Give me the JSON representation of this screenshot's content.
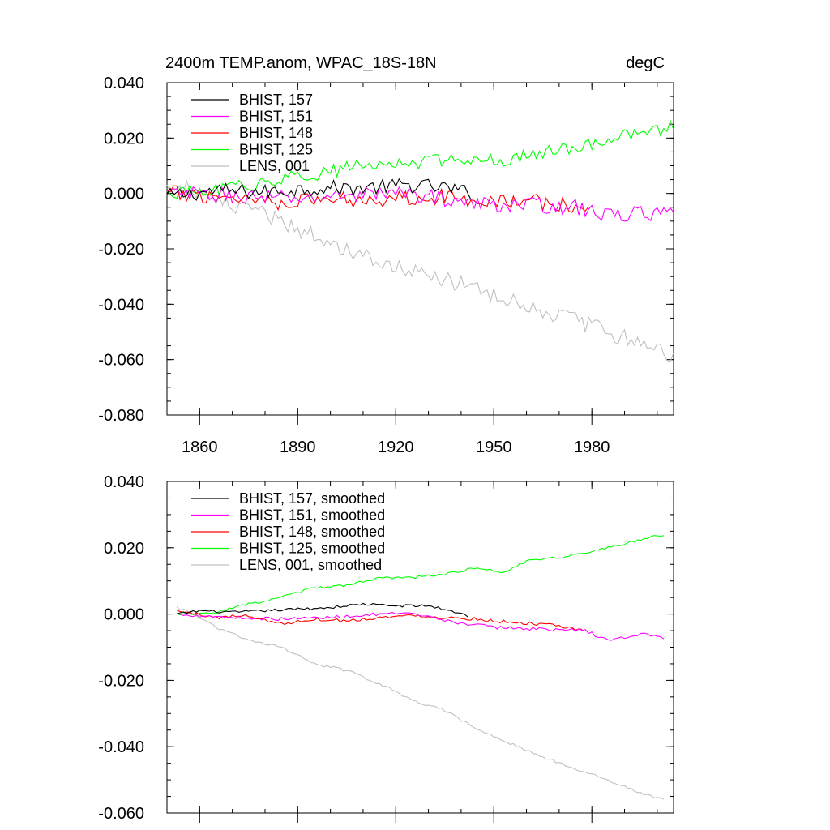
{
  "chart_data": [
    {
      "type": "line",
      "title": "2400m TEMP.anom, WPAC_18S-18N",
      "units": "degC",
      "xlim": [
        1850,
        2005
      ],
      "ylim": [
        -0.08,
        0.04
      ],
      "xticks": [
        1860,
        1890,
        1920,
        1950,
        1980
      ],
      "yticks": [
        0.04,
        0.02,
        0.0,
        -0.02,
        -0.04,
        -0.06,
        -0.08
      ],
      "ytick_labels": [
        "0.040",
        "0.020",
        "0.000",
        "-0.020",
        "-0.040",
        "-0.060",
        "-0.080"
      ],
      "grid": false,
      "legend_position": "top-left",
      "series": [
        {
          "name": "BHIST, 157",
          "color": "#000000",
          "x_start": 1850,
          "x_end": 1943,
          "knots": [
            [
              1850,
              -0.001
            ],
            [
              1865,
              0.001
            ],
            [
              1880,
              0.0005
            ],
            [
              1895,
              0.002
            ],
            [
              1910,
              0.002
            ],
            [
              1925,
              0.003
            ],
            [
              1935,
              0.002
            ],
            [
              1943,
              0.0
            ]
          ],
          "noise": 0.0028
        },
        {
          "name": "BHIST, 151",
          "color": "#ff00ff",
          "x_start": 1850,
          "x_end": 2005,
          "knots": [
            [
              1850,
              0.0
            ],
            [
              1870,
              -0.001
            ],
            [
              1890,
              -0.002
            ],
            [
              1910,
              0.0
            ],
            [
              1925,
              0.0
            ],
            [
              1945,
              -0.004
            ],
            [
              1960,
              -0.004
            ],
            [
              1975,
              -0.005
            ],
            [
              1985,
              -0.008
            ],
            [
              1995,
              -0.007
            ],
            [
              2005,
              -0.008
            ]
          ],
          "noise": 0.0028
        },
        {
          "name": "BHIST, 148",
          "color": "#ff0000",
          "x_start": 1850,
          "x_end": 1979,
          "knots": [
            [
              1850,
              0.0
            ],
            [
              1870,
              -0.001
            ],
            [
              1885,
              -0.003
            ],
            [
              1900,
              -0.002
            ],
            [
              1915,
              -0.002
            ],
            [
              1930,
              -0.001
            ],
            [
              1945,
              -0.002
            ],
            [
              1960,
              -0.003
            ],
            [
              1970,
              -0.004
            ],
            [
              1979,
              -0.006
            ]
          ],
          "noise": 0.003
        },
        {
          "name": "BHIST, 125",
          "color": "#00ff00",
          "x_start": 1850,
          "x_end": 2005,
          "knots": [
            [
              1850,
              0.0
            ],
            [
              1865,
              0.001
            ],
            [
              1880,
              0.004
            ],
            [
              1895,
              0.007
            ],
            [
              1910,
              0.01
            ],
            [
              1925,
              0.011
            ],
            [
              1940,
              0.013
            ],
            [
              1955,
              0.012
            ],
            [
              1965,
              0.015
            ],
            [
              1980,
              0.018
            ],
            [
              1995,
              0.022
            ],
            [
              2005,
              0.024
            ]
          ],
          "noise": 0.0025
        },
        {
          "name": "LENS, 001",
          "color": "#c0c0c0",
          "x_start": 1850,
          "x_end": 2005,
          "knots": [
            [
              1850,
              0.002
            ],
            [
              1855,
              0.003
            ],
            [
              1865,
              -0.003
            ],
            [
              1880,
              -0.008
            ],
            [
              1895,
              -0.015
            ],
            [
              1910,
              -0.022
            ],
            [
              1925,
              -0.028
            ],
            [
              1940,
              -0.033
            ],
            [
              1955,
              -0.038
            ],
            [
              1970,
              -0.044
            ],
            [
              1985,
              -0.05
            ],
            [
              1995,
              -0.054
            ],
            [
              2005,
              -0.058
            ]
          ],
          "noise": 0.0032
        }
      ]
    },
    {
      "type": "line",
      "xlim": [
        1850,
        2005
      ],
      "ylim": [
        -0.06,
        0.04
      ],
      "xticks": [
        1860,
        1890,
        1920,
        1950,
        1980
      ],
      "yticks": [
        0.04,
        0.02,
        0.0,
        -0.02,
        -0.04,
        -0.06
      ],
      "ytick_labels": [
        "0.040",
        "0.020",
        "0.000",
        "-0.020",
        "-0.040",
        "-0.060"
      ],
      "grid": false,
      "legend_position": "top-left",
      "series": [
        {
          "name": "BHIST, 157, smoothed",
          "color": "#000000",
          "x_start": 1853,
          "x_end": 1942,
          "knots": [
            [
              1853,
              0.0
            ],
            [
              1860,
              0.001
            ],
            [
              1870,
              0.0005
            ],
            [
              1880,
              0.001
            ],
            [
              1890,
              0.0015
            ],
            [
              1900,
              0.002
            ],
            [
              1910,
              0.003
            ],
            [
              1920,
              0.0025
            ],
            [
              1930,
              0.0025
            ],
            [
              1937,
              0.001
            ],
            [
              1942,
              -0.0005
            ]
          ],
          "noise": 0.0004
        },
        {
          "name": "BHIST, 151, smoothed",
          "color": "#ff00ff",
          "x_start": 1853,
          "x_end": 2002,
          "knots": [
            [
              1853,
              0.0
            ],
            [
              1870,
              -0.001
            ],
            [
              1885,
              -0.0015
            ],
            [
              1900,
              -0.001
            ],
            [
              1915,
              0.0
            ],
            [
              1925,
              0.0
            ],
            [
              1935,
              -0.002
            ],
            [
              1950,
              -0.004
            ],
            [
              1965,
              -0.0045
            ],
            [
              1978,
              -0.005
            ],
            [
              1985,
              -0.008
            ],
            [
              1995,
              -0.006
            ],
            [
              2002,
              -0.007
            ]
          ],
          "noise": 0.0005
        },
        {
          "name": "BHIST, 148, smoothed",
          "color": "#ff0000",
          "x_start": 1853,
          "x_end": 1977,
          "knots": [
            [
              1853,
              0.001
            ],
            [
              1865,
              -0.001
            ],
            [
              1875,
              -0.0005
            ],
            [
              1885,
              -0.003
            ],
            [
              1895,
              -0.0015
            ],
            [
              1905,
              -0.002
            ],
            [
              1915,
              -0.001
            ],
            [
              1925,
              -0.0005
            ],
            [
              1935,
              -0.001
            ],
            [
              1945,
              -0.0015
            ],
            [
              1955,
              -0.0025
            ],
            [
              1965,
              -0.003
            ],
            [
              1977,
              -0.005
            ]
          ],
          "noise": 0.0005
        },
        {
          "name": "BHIST, 125, smoothed",
          "color": "#00ff00",
          "x_start": 1853,
          "x_end": 2002,
          "knots": [
            [
              1853,
              0.0
            ],
            [
              1863,
              0.0
            ],
            [
              1875,
              0.003
            ],
            [
              1885,
              0.005
            ],
            [
              1895,
              0.008
            ],
            [
              1905,
              0.0085
            ],
            [
              1915,
              0.011
            ],
            [
              1925,
              0.011
            ],
            [
              1935,
              0.012
            ],
            [
              1945,
              0.014
            ],
            [
              1953,
              0.0125
            ],
            [
              1960,
              0.016
            ],
            [
              1970,
              0.017
            ],
            [
              1985,
              0.02
            ],
            [
              2002,
              0.024
            ]
          ],
          "noise": 0.0004
        },
        {
          "name": "LENS, 001, smoothed",
          "color": "#c0c0c0",
          "x_start": 1853,
          "x_end": 2002,
          "knots": [
            [
              1853,
              0.002
            ],
            [
              1858,
              0.0
            ],
            [
              1865,
              -0.004
            ],
            [
              1875,
              -0.008
            ],
            [
              1885,
              -0.01
            ],
            [
              1895,
              -0.015
            ],
            [
              1905,
              -0.017
            ],
            [
              1915,
              -0.021
            ],
            [
              1925,
              -0.026
            ],
            [
              1935,
              -0.029
            ],
            [
              1945,
              -0.035
            ],
            [
              1955,
              -0.039
            ],
            [
              1965,
              -0.043
            ],
            [
              1975,
              -0.047
            ],
            [
              1985,
              -0.05
            ],
            [
              1995,
              -0.054
            ],
            [
              2002,
              -0.056
            ]
          ],
          "noise": 0.0004
        }
      ]
    }
  ]
}
